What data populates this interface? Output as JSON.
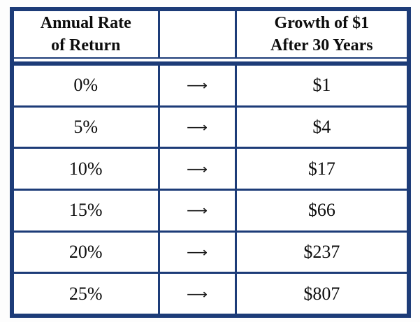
{
  "colors": {
    "border_navy": "#1d3c78",
    "text": "#0d0d0d",
    "background": "#ffffff"
  },
  "header": {
    "rate_col": [
      "Annual Rate",
      "of Return"
    ],
    "growth_col": [
      "Growth of $1",
      "After 30 Years"
    ]
  },
  "chart_data": {
    "type": "table",
    "title": "",
    "columns": [
      "Annual Rate of Return",
      "",
      "Growth of $1 After 30 Years"
    ],
    "rows": [
      [
        "0%",
        "⟶",
        "$1"
      ],
      [
        "5%",
        "⟶",
        "$4"
      ],
      [
        "10%",
        "⟶",
        "$17"
      ],
      [
        "15%",
        "⟶",
        "$66"
      ],
      [
        "20%",
        "⟶",
        "$237"
      ],
      [
        "25%",
        "⟶",
        "$807"
      ]
    ],
    "rates_numeric_percent": [
      0,
      5,
      10,
      15,
      20,
      25
    ],
    "growth_numeric_dollars": [
      1,
      4,
      17,
      66,
      237,
      807
    ]
  }
}
